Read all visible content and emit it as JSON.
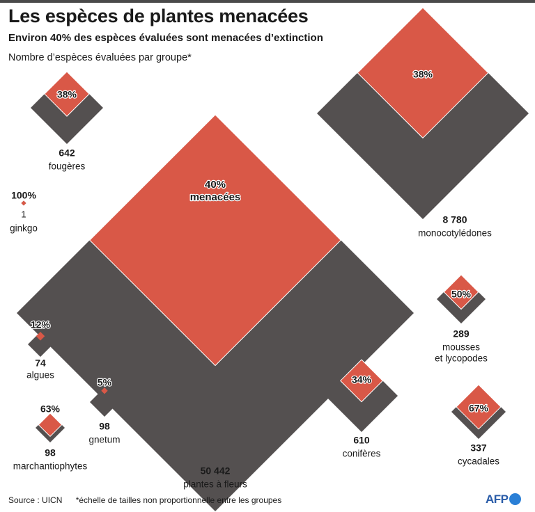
{
  "header": {
    "title": "Les espèces de plantes menacées",
    "subtitle": "Environ 40% des espèces évaluées sont menacées d’extinction",
    "note": "Nombre d’espèces évaluées par groupe*"
  },
  "footer": {
    "source": "Source : UICN",
    "footnote": "*échelle de tailles non proportionnelle entre les groupes",
    "logo": "AFP"
  },
  "colors": {
    "total": "#545050",
    "threatened": "#d95847",
    "text": "#1a1a1a"
  },
  "chart_data": {
    "type": "nested-diamonds",
    "title": "Les espèces de plantes menacées",
    "groups": [
      {
        "id": "fougeres",
        "name": "fougères",
        "count": 642,
        "count_label": "642",
        "threatened_pct": 38,
        "pct_label": "38%"
      },
      {
        "id": "ginkgo",
        "name": "ginkgo",
        "count": 1,
        "count_label": "1",
        "threatened_pct": 100,
        "pct_label": "100%"
      },
      {
        "id": "plantes-a-fleurs",
        "name": "plantes à fleurs",
        "count": 50442,
        "count_label": "50 442",
        "threatened_pct": 40,
        "pct_label": "40%",
        "pct_suffix": "menacées"
      },
      {
        "id": "monocotyledones",
        "name": "monocotylédones",
        "count": 8780,
        "count_label": "8 780",
        "threatened_pct": 38,
        "pct_label": "38%"
      },
      {
        "id": "mousses",
        "name": "mousses\net lycopodes",
        "count": 289,
        "count_label": "289",
        "threatened_pct": 50,
        "pct_label": "50%"
      },
      {
        "id": "algues",
        "name": "algues",
        "count": 74,
        "count_label": "74",
        "threatened_pct": 12,
        "pct_label": "12%"
      },
      {
        "id": "gnetum",
        "name": "gnetum",
        "count": 98,
        "count_label": "98",
        "threatened_pct": 5,
        "pct_label": "5%"
      },
      {
        "id": "marchantiophytes",
        "name": "marchantiophytes",
        "count": 98,
        "count_label": "98",
        "threatened_pct": 63,
        "pct_label": "63%"
      },
      {
        "id": "coniferes",
        "name": "conifères",
        "count": 610,
        "count_label": "610",
        "threatened_pct": 34,
        "pct_label": "34%"
      },
      {
        "id": "cycadales",
        "name": "cycadales",
        "count": 337,
        "count_label": "337",
        "threatened_pct": 67,
        "pct_label": "67%"
      }
    ]
  }
}
